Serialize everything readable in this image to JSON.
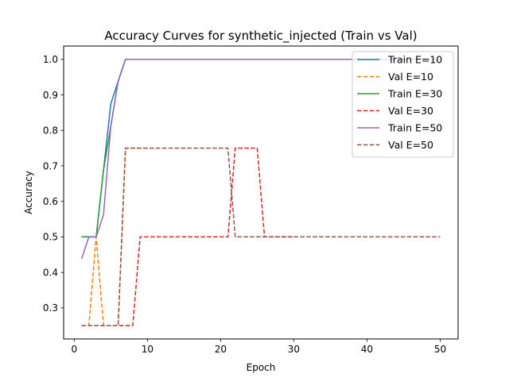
{
  "chart_data": {
    "type": "line",
    "title": "Accuracy Curves for synthetic_injected (Train vs Val)",
    "xlabel": "Epoch",
    "ylabel": "Accuracy",
    "xlim": [
      -1.45,
      52.45
    ],
    "ylim": [
      0.2125,
      1.0375
    ],
    "xticks": [
      0,
      10,
      20,
      30,
      40,
      50
    ],
    "yticks": [
      0.3,
      0.4,
      0.5,
      0.6,
      0.7,
      0.8,
      0.9,
      1.0
    ],
    "ytick_labels": [
      "0.3",
      "0.4",
      "0.5",
      "0.6",
      "0.7",
      "0.8",
      "0.9",
      "1.0"
    ],
    "grid": false,
    "legend_position": "top-right",
    "series": [
      {
        "name": "Train E=10",
        "color": "#1f77b4",
        "dashed": false,
        "x": [
          1,
          2,
          3,
          4,
          5,
          6,
          7,
          8,
          9,
          10
        ],
        "y": [
          0.5,
          0.5,
          0.5,
          0.688,
          0.875,
          0.938,
          1.0,
          1.0,
          1.0,
          1.0
        ]
      },
      {
        "name": "Val E=10",
        "color": "#ff7f0e",
        "dashed": true,
        "x": [
          1,
          2,
          3,
          4,
          5,
          6,
          7,
          8,
          9,
          10
        ],
        "y": [
          0.25,
          0.25,
          0.5,
          0.25,
          0.25,
          0.25,
          0.75,
          0.75,
          0.75,
          0.75
        ]
      },
      {
        "name": "Train E=30",
        "color": "#2ca02c",
        "dashed": false,
        "x": [
          1,
          2,
          3,
          4,
          5,
          6,
          7,
          8,
          9,
          10,
          11,
          12,
          13,
          14,
          15,
          16,
          17,
          18,
          19,
          20,
          21,
          22,
          23,
          24,
          25,
          26,
          27,
          28,
          29,
          30
        ],
        "y": [
          0.5,
          0.5,
          0.5,
          0.688,
          0.812,
          0.938,
          1.0,
          1.0,
          1.0,
          1.0,
          1.0,
          1.0,
          1.0,
          1.0,
          1.0,
          1.0,
          1.0,
          1.0,
          1.0,
          1.0,
          1.0,
          1.0,
          1.0,
          1.0,
          1.0,
          1.0,
          1.0,
          1.0,
          1.0,
          1.0
        ]
      },
      {
        "name": "Val E=30",
        "color": "#d62728",
        "dashed": true,
        "x": [
          1,
          2,
          3,
          4,
          5,
          6,
          7,
          8,
          9,
          10,
          11,
          12,
          13,
          14,
          15,
          16,
          17,
          18,
          19,
          20,
          21,
          22,
          23,
          24,
          25,
          26,
          27,
          28,
          29,
          30
        ],
        "y": [
          0.25,
          0.25,
          0.25,
          0.25,
          0.25,
          0.25,
          0.25,
          0.25,
          0.5,
          0.5,
          0.5,
          0.5,
          0.5,
          0.5,
          0.5,
          0.5,
          0.5,
          0.5,
          0.5,
          0.5,
          0.5,
          0.75,
          0.75,
          0.75,
          0.75,
          0.5,
          0.5,
          0.5,
          0.5,
          0.5
        ]
      },
      {
        "name": "Train E=50",
        "color": "#9467bd",
        "dashed": false,
        "x": [
          1,
          2,
          3,
          4,
          5,
          6,
          7,
          8,
          9,
          10,
          11,
          12,
          13,
          14,
          15,
          16,
          17,
          18,
          19,
          20,
          21,
          22,
          23,
          24,
          25,
          26,
          27,
          28,
          29,
          30,
          31,
          32,
          33,
          34,
          35,
          36,
          37,
          38,
          39,
          40,
          41,
          42,
          43,
          44,
          45,
          46,
          47,
          48,
          49,
          50
        ],
        "y": [
          0.438,
          0.5,
          0.5,
          0.562,
          0.812,
          0.938,
          1.0,
          1.0,
          1.0,
          1.0,
          1.0,
          1.0,
          1.0,
          1.0,
          1.0,
          1.0,
          1.0,
          1.0,
          1.0,
          1.0,
          1.0,
          1.0,
          1.0,
          1.0,
          1.0,
          1.0,
          1.0,
          1.0,
          1.0,
          1.0,
          1.0,
          1.0,
          1.0,
          1.0,
          1.0,
          1.0,
          1.0,
          1.0,
          1.0,
          1.0,
          1.0,
          1.0,
          1.0,
          1.0,
          1.0,
          1.0,
          1.0,
          1.0,
          1.0,
          1.0
        ]
      },
      {
        "name": "Val E=50",
        "color": "#8c564b",
        "dashed": true,
        "x": [
          1,
          2,
          3,
          4,
          5,
          6,
          7,
          8,
          9,
          10,
          11,
          12,
          13,
          14,
          15,
          16,
          17,
          18,
          19,
          20,
          21,
          22,
          23,
          24,
          25,
          26,
          27,
          28,
          29,
          30,
          31,
          32,
          33,
          34,
          35,
          36,
          37,
          38,
          39,
          40,
          41,
          42,
          43,
          44,
          45,
          46,
          47,
          48,
          49,
          50
        ],
        "y": [
          0.25,
          0.25,
          0.25,
          0.25,
          0.25,
          0.25,
          0.75,
          0.75,
          0.75,
          0.75,
          0.75,
          0.75,
          0.75,
          0.75,
          0.75,
          0.75,
          0.75,
          0.75,
          0.75,
          0.75,
          0.75,
          0.5,
          0.5,
          0.5,
          0.5,
          0.5,
          0.5,
          0.5,
          0.5,
          0.5,
          0.5,
          0.5,
          0.5,
          0.5,
          0.5,
          0.5,
          0.5,
          0.5,
          0.5,
          0.5,
          0.5,
          0.5,
          0.5,
          0.5,
          0.5,
          0.5,
          0.5,
          0.5,
          0.5,
          0.5
        ]
      }
    ]
  }
}
